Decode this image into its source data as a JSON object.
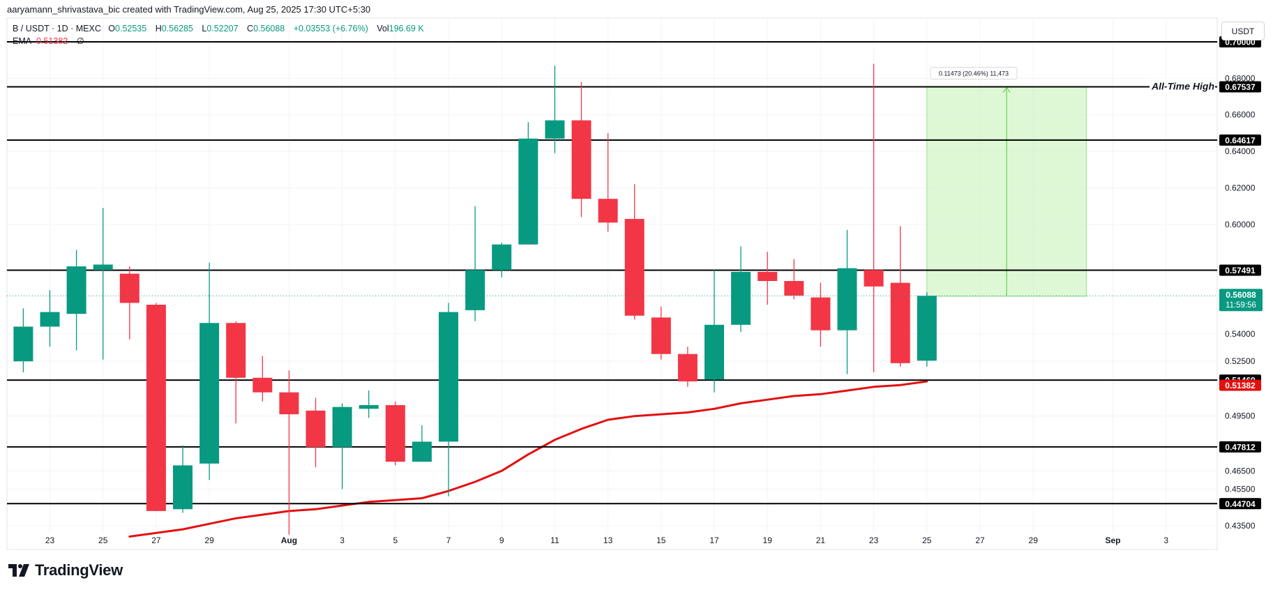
{
  "header": {
    "attribution": "aaryamann_shrivastava_bic created with TradingView.com, Aug 25, 2025 17:30 UTC+5:30"
  },
  "legend": {
    "symbol": "B / USDT · 1D · MEXC",
    "open_label": "O",
    "open": "0.52535",
    "high_label": "H",
    "high": "0.56285",
    "low_label": "L",
    "low": "0.52207",
    "close_label": "C",
    "close": "0.56088",
    "change": "+0.03553 (+6.76%)",
    "vol_label": "Vol",
    "vol": "196.69 K",
    "ema_label": "EMA",
    "ema_value": "0.51382",
    "ema_extra": "∅"
  },
  "currency_button": "USDT",
  "brand": {
    "name": "TradingView",
    "logo_icon": "tradingview-logo"
  },
  "colors": {
    "up": "#089981",
    "down": "#f23645",
    "ema": "#e30f0f",
    "target_zone": "#ccf5c0"
  },
  "chart_data": {
    "type": "candlestick",
    "instrument": "B / USDT",
    "timeframe": "1D",
    "exchange": "MEXC",
    "ylim": [
      0.425,
      0.7
    ],
    "y_axis_ticks": [
      "0.43500",
      "0.45500",
      "0.46500",
      "0.49500",
      "0.52500",
      "0.54000",
      "0.60000",
      "0.62000",
      "0.64000",
      "0.66000",
      "0.68000"
    ],
    "x_axis_ticks": [
      {
        "label": "23",
        "date": "2025-07-23"
      },
      {
        "label": "25",
        "date": "2025-07-25"
      },
      {
        "label": "27",
        "date": "2025-07-27"
      },
      {
        "label": "29",
        "date": "2025-07-29"
      },
      {
        "label": "Aug",
        "date": "2025-08-01"
      },
      {
        "label": "3",
        "date": "2025-08-03"
      },
      {
        "label": "5",
        "date": "2025-08-05"
      },
      {
        "label": "7",
        "date": "2025-08-07"
      },
      {
        "label": "9",
        "date": "2025-08-09"
      },
      {
        "label": "11",
        "date": "2025-08-11"
      },
      {
        "label": "13",
        "date": "2025-08-13"
      },
      {
        "label": "15",
        "date": "2025-08-15"
      },
      {
        "label": "17",
        "date": "2025-08-17"
      },
      {
        "label": "19",
        "date": "2025-08-19"
      },
      {
        "label": "21",
        "date": "2025-08-21"
      },
      {
        "label": "23",
        "date": "2025-08-23"
      },
      {
        "label": "25",
        "date": "2025-08-25"
      },
      {
        "label": "27",
        "date": "2025-08-27"
      },
      {
        "label": "29",
        "date": "2025-08-29"
      },
      {
        "label": "Sep",
        "date": "2025-09-01"
      },
      {
        "label": "3",
        "date": "2025-09-03"
      }
    ],
    "candles": [
      {
        "date": "2025-07-22",
        "o": 0.525,
        "h": 0.554,
        "l": 0.519,
        "c": 0.544
      },
      {
        "date": "2025-07-23",
        "o": 0.544,
        "h": 0.564,
        "l": 0.533,
        "c": 0.552
      },
      {
        "date": "2025-07-24",
        "o": 0.551,
        "h": 0.586,
        "l": 0.531,
        "c": 0.577
      },
      {
        "date": "2025-07-25",
        "o": 0.575,
        "h": 0.609,
        "l": 0.526,
        "c": 0.578
      },
      {
        "date": "2025-07-26",
        "o": 0.573,
        "h": 0.577,
        "l": 0.537,
        "c": 0.557
      },
      {
        "date": "2025-07-27",
        "o": 0.556,
        "h": 0.557,
        "l": 0.443,
        "c": 0.443
      },
      {
        "date": "2025-07-28",
        "o": 0.444,
        "h": 0.479,
        "l": 0.442,
        "c": 0.468
      },
      {
        "date": "2025-07-29",
        "o": 0.469,
        "h": 0.579,
        "l": 0.46,
        "c": 0.546
      },
      {
        "date": "2025-07-30",
        "o": 0.546,
        "h": 0.547,
        "l": 0.491,
        "c": 0.516
      },
      {
        "date": "2025-07-31",
        "o": 0.516,
        "h": 0.528,
        "l": 0.503,
        "c": 0.508
      },
      {
        "date": "2025-08-01",
        "o": 0.508,
        "h": 0.52,
        "l": 0.43,
        "c": 0.496
      },
      {
        "date": "2025-08-02",
        "o": 0.498,
        "h": 0.505,
        "l": 0.467,
        "c": 0.478
      },
      {
        "date": "2025-08-03",
        "o": 0.478,
        "h": 0.502,
        "l": 0.455,
        "c": 0.5
      },
      {
        "date": "2025-08-04",
        "o": 0.499,
        "h": 0.509,
        "l": 0.494,
        "c": 0.501
      },
      {
        "date": "2025-08-05",
        "o": 0.501,
        "h": 0.503,
        "l": 0.468,
        "c": 0.47
      },
      {
        "date": "2025-08-06",
        "o": 0.47,
        "h": 0.49,
        "l": 0.47,
        "c": 0.481
      },
      {
        "date": "2025-08-07",
        "o": 0.481,
        "h": 0.557,
        "l": 0.451,
        "c": 0.552
      },
      {
        "date": "2025-08-08",
        "o": 0.553,
        "h": 0.61,
        "l": 0.547,
        "c": 0.575
      },
      {
        "date": "2025-08-09",
        "o": 0.575,
        "h": 0.59,
        "l": 0.571,
        "c": 0.589
      },
      {
        "date": "2025-08-10",
        "o": 0.589,
        "h": 0.656,
        "l": 0.589,
        "c": 0.647
      },
      {
        "date": "2025-08-11",
        "o": 0.647,
        "h": 0.687,
        "l": 0.639,
        "c": 0.657
      },
      {
        "date": "2025-08-12",
        "o": 0.657,
        "h": 0.678,
        "l": 0.604,
        "c": 0.614
      },
      {
        "date": "2025-08-13",
        "o": 0.614,
        "h": 0.65,
        "l": 0.596,
        "c": 0.601
      },
      {
        "date": "2025-08-14",
        "o": 0.603,
        "h": 0.622,
        "l": 0.548,
        "c": 0.55
      },
      {
        "date": "2025-08-15",
        "o": 0.549,
        "h": 0.555,
        "l": 0.526,
        "c": 0.529
      },
      {
        "date": "2025-08-16",
        "o": 0.529,
        "h": 0.533,
        "l": 0.511,
        "c": 0.514
      },
      {
        "date": "2025-08-17",
        "o": 0.515,
        "h": 0.575,
        "l": 0.508,
        "c": 0.545
      },
      {
        "date": "2025-08-18",
        "o": 0.545,
        "h": 0.588,
        "l": 0.541,
        "c": 0.574
      },
      {
        "date": "2025-08-19",
        "o": 0.574,
        "h": 0.585,
        "l": 0.556,
        "c": 0.569
      },
      {
        "date": "2025-08-20",
        "o": 0.569,
        "h": 0.581,
        "l": 0.559,
        "c": 0.561
      },
      {
        "date": "2025-08-21",
        "o": 0.56,
        "h": 0.568,
        "l": 0.533,
        "c": 0.542
      },
      {
        "date": "2025-08-22",
        "o": 0.542,
        "h": 0.597,
        "l": 0.518,
        "c": 0.576
      },
      {
        "date": "2025-08-23",
        "o": 0.575,
        "h": 0.688,
        "l": 0.519,
        "c": 0.566
      },
      {
        "date": "2025-08-24",
        "o": 0.568,
        "h": 0.599,
        "l": 0.522,
        "c": 0.524
      },
      {
        "date": "2025-08-25",
        "o": 0.52535,
        "h": 0.56285,
        "l": 0.52207,
        "c": 0.56088
      }
    ],
    "ema": [
      {
        "date": "2025-07-26",
        "v": 0.429
      },
      {
        "date": "2025-07-27",
        "v": 0.431
      },
      {
        "date": "2025-07-28",
        "v": 0.433
      },
      {
        "date": "2025-07-29",
        "v": 0.436
      },
      {
        "date": "2025-07-30",
        "v": 0.439
      },
      {
        "date": "2025-07-31",
        "v": 0.441
      },
      {
        "date": "2025-08-01",
        "v": 0.443
      },
      {
        "date": "2025-08-02",
        "v": 0.444
      },
      {
        "date": "2025-08-03",
        "v": 0.446
      },
      {
        "date": "2025-08-04",
        "v": 0.448
      },
      {
        "date": "2025-08-05",
        "v": 0.449
      },
      {
        "date": "2025-08-06",
        "v": 0.45
      },
      {
        "date": "2025-08-07",
        "v": 0.454
      },
      {
        "date": "2025-08-08",
        "v": 0.459
      },
      {
        "date": "2025-08-09",
        "v": 0.465
      },
      {
        "date": "2025-08-10",
        "v": 0.474
      },
      {
        "date": "2025-08-11",
        "v": 0.482
      },
      {
        "date": "2025-08-12",
        "v": 0.488
      },
      {
        "date": "2025-08-13",
        "v": 0.493
      },
      {
        "date": "2025-08-14",
        "v": 0.495
      },
      {
        "date": "2025-08-15",
        "v": 0.496
      },
      {
        "date": "2025-08-16",
        "v": 0.497
      },
      {
        "date": "2025-08-17",
        "v": 0.499
      },
      {
        "date": "2025-08-18",
        "v": 0.502
      },
      {
        "date": "2025-08-19",
        "v": 0.504
      },
      {
        "date": "2025-08-20",
        "v": 0.506
      },
      {
        "date": "2025-08-21",
        "v": 0.507
      },
      {
        "date": "2025-08-22",
        "v": 0.509
      },
      {
        "date": "2025-08-23",
        "v": 0.511
      },
      {
        "date": "2025-08-24",
        "v": 0.512
      },
      {
        "date": "2025-08-25",
        "v": 0.514
      }
    ],
    "horizontal_levels": [
      {
        "value": 0.7,
        "label": "0.70000"
      },
      {
        "value": 0.67537,
        "label": "0.67537",
        "annotation": "All-Time High"
      },
      {
        "value": 0.64617,
        "label": "0.64617"
      },
      {
        "value": 0.57491,
        "label": "0.57491"
      },
      {
        "value": 0.51469,
        "label": "0.51469"
      },
      {
        "value": 0.47812,
        "label": "0.47812"
      },
      {
        "value": 0.44704,
        "label": "0.44704"
      }
    ],
    "last_price": {
      "value": 0.56088,
      "label": "0.56088",
      "countdown": "11:59:56"
    },
    "ema_price_label": {
      "value": 0.51382,
      "label": "0.51382"
    },
    "measure": {
      "from_date": "2025-08-25",
      "to_date": "2025-08-31",
      "from_price": 0.56064,
      "to_price": 0.67537,
      "arrow_date": "2025-08-28",
      "label": "0.11473 (20.46%) 11,473"
    }
  }
}
